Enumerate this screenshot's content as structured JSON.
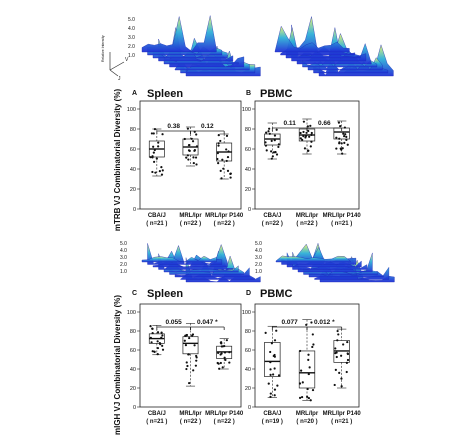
{
  "figure": {
    "panels": [
      {
        "letter": "A",
        "title": "Spleen",
        "pvalues": [
          {
            "text": "0.38"
          },
          {
            "text": "0.12"
          }
        ]
      },
      {
        "letter": "B",
        "title": "PBMC",
        "pvalues": [
          {
            "text": "0.11"
          },
          {
            "text": "0.66"
          }
        ]
      },
      {
        "letter": "C",
        "title": "Spleen",
        "pvalues": [
          {
            "text": "0.055"
          },
          {
            "text": "0.047 *"
          }
        ]
      },
      {
        "letter": "D",
        "title": "PBMC",
        "pvalues": [
          {
            "text": "0.077"
          },
          {
            "text": "0.012 *"
          }
        ]
      }
    ],
    "ylabels": {
      "top": "mTRB VJ Combinatorial Diversity (%)",
      "bottom": "mIGH VJ Combinatorial Diversity (%)"
    },
    "surface_labels": {
      "top_ticks": [
        "5.0",
        "4.0",
        "3.0",
        "2.0",
        "1.0"
      ],
      "bottom_ticks": [
        "5.0",
        "4.0",
        "3.0",
        "2.0",
        "1.0"
      ],
      "axis_title": "Relative Intensity",
      "axis_v": "V",
      "axis_j": "J"
    },
    "colors": {
      "surface_low": "#1f2fd6",
      "surface_mid": "#2fb0d8",
      "surface_high": "#e8f46a"
    }
  },
  "chart_data": [
    {
      "type": "box",
      "title": "Spleen",
      "ylabel": "mTRB VJ Combinatorial Diversity (%)",
      "ylim": [
        0,
        100
      ],
      "yticks": [
        0,
        20,
        40,
        60,
        80,
        100
      ],
      "categories": [
        "CBA/J",
        "MRL/lpr",
        "MRL/lpr P140"
      ],
      "counts": [
        "( n=21 )",
        "( n=22 )",
        "( n=22 )"
      ],
      "boxes": [
        {
          "q1": 52,
          "median": 60,
          "q3": 68,
          "whisker_low": 33,
          "whisker_high": 80
        },
        {
          "q1": 54,
          "median": 62,
          "q3": 70,
          "whisker_low": 43,
          "whisker_high": 82
        },
        {
          "q1": 48,
          "median": 57,
          "q3": 66,
          "whisker_low": 30,
          "whisker_high": 75
        }
      ],
      "comparisons": [
        "0.38",
        "0.12"
      ]
    },
    {
      "type": "box",
      "title": "PBMC",
      "ylabel": "mTRB VJ Combinatorial Diversity (%)",
      "ylim": [
        0,
        100
      ],
      "yticks": [
        0,
        20,
        40,
        60,
        80,
        100
      ],
      "categories": [
        "CBA/J",
        "MRL/lpr",
        "MRL/lpr P140"
      ],
      "counts": [
        "( n=22 )",
        "( n=22 )",
        "( n=21 )"
      ],
      "boxes": [
        {
          "q1": 64,
          "median": 70,
          "q3": 75,
          "whisker_low": 50,
          "whisker_high": 86
        },
        {
          "q1": 68,
          "median": 74,
          "q3": 80,
          "whisker_low": 55,
          "whisker_high": 90
        },
        {
          "q1": 70,
          "median": 77,
          "q3": 81,
          "whisker_low": 55,
          "whisker_high": 88
        }
      ],
      "comparisons": [
        "0.11",
        "0.66"
      ]
    },
    {
      "type": "box",
      "title": "Spleen",
      "ylabel": "mIGH VJ Combinatorial Diversity (%)",
      "ylim": [
        0,
        100
      ],
      "yticks": [
        0,
        20,
        40,
        60,
        80,
        100
      ],
      "categories": [
        "CBA/J",
        "MRL/lpr",
        "MRL/lpr P140"
      ],
      "counts": [
        "( n=21 )",
        "( n=22 )",
        "( n=22 )"
      ],
      "boxes": [
        {
          "q1": 67,
          "median": 72,
          "q3": 77,
          "whisker_low": 55,
          "whisker_high": 86
        },
        {
          "q1": 56,
          "median": 67,
          "q3": 74,
          "whisker_low": 22,
          "whisker_high": 88
        },
        {
          "q1": 51,
          "median": 58,
          "q3": 64,
          "whisker_low": 40,
          "whisker_high": 72
        }
      ],
      "comparisons": [
        "0.055",
        "0.047 *"
      ]
    },
    {
      "type": "box",
      "title": "PBMC",
      "ylabel": "mIGH VJ Combinatorial Diversity (%)",
      "ylim": [
        0,
        100
      ],
      "yticks": [
        0,
        20,
        40,
        60,
        80,
        100
      ],
      "categories": [
        "CBA/J",
        "MRL/lpr",
        "MRL/lpr P140"
      ],
      "counts": [
        "( n=19 )",
        "( n=20 )",
        "( n=21 )"
      ],
      "boxes": [
        {
          "q1": 32,
          "median": 48,
          "q3": 68,
          "whisker_low": 10,
          "whisker_high": 85
        },
        {
          "q1": 20,
          "median": 36,
          "q3": 59,
          "whisker_low": 7,
          "whisker_high": 92
        },
        {
          "q1": 47,
          "median": 59,
          "q3": 70,
          "whisker_low": 20,
          "whisker_high": 82
        }
      ],
      "comparisons": [
        "0.077",
        "0.012 *"
      ]
    }
  ]
}
